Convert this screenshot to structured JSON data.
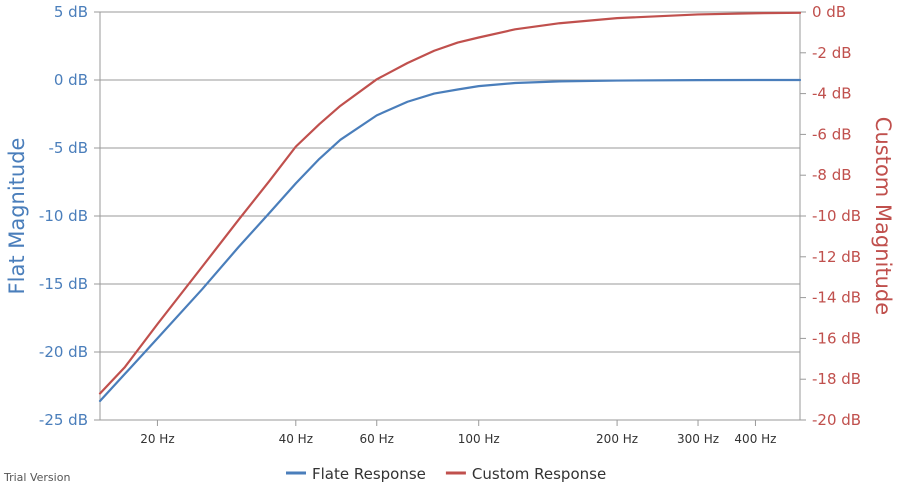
{
  "watermark": "Trial Version",
  "chart_data": {
    "type": "line",
    "x_scale": "log",
    "x_ticks": [
      {
        "value": 20,
        "label": "20 Hz"
      },
      {
        "value": 40,
        "label": "40 Hz"
      },
      {
        "value": 60,
        "label": "60 Hz"
      },
      {
        "value": 100,
        "label": "100 Hz"
      },
      {
        "value": 200,
        "label": "200 Hz"
      },
      {
        "value": 300,
        "label": "300 Hz"
      },
      {
        "value": 400,
        "label": "400 Hz"
      }
    ],
    "xlim": [
      15,
      500
    ],
    "left_axis": {
      "title": "Flat Magnitude",
      "ylim": [
        -25,
        5
      ],
      "ticks": [
        {
          "value": 5,
          "label": "5 dB"
        },
        {
          "value": 0,
          "label": "0 dB"
        },
        {
          "value": -5,
          "label": "-5 dB"
        },
        {
          "value": -10,
          "label": "-10 dB"
        },
        {
          "value": -15,
          "label": "-15 dB"
        },
        {
          "value": -20,
          "label": "-20 dB"
        },
        {
          "value": -25,
          "label": "-25 dB"
        }
      ],
      "color": "#4a7ebb"
    },
    "right_axis": {
      "title": "Custom Magnitude",
      "ylim": [
        -20,
        0
      ],
      "ticks": [
        {
          "value": 0,
          "label": "0 dB"
        },
        {
          "value": -2,
          "label": "-2 dB"
        },
        {
          "value": -4,
          "label": "-4 dB"
        },
        {
          "value": -6,
          "label": "-6 dB"
        },
        {
          "value": -8,
          "label": "-8 dB"
        },
        {
          "value": -10,
          "label": "-10 dB"
        },
        {
          "value": -12,
          "label": "-12 dB"
        },
        {
          "value": -14,
          "label": "-14 dB"
        },
        {
          "value": -16,
          "label": "-16 dB"
        },
        {
          "value": -18,
          "label": "-18 dB"
        },
        {
          "value": -20,
          "label": "-20 dB"
        }
      ],
      "color": "#c0504d"
    },
    "grid": "horizontal",
    "legend_position": "bottom",
    "series": [
      {
        "name": "Flate Response",
        "axis": "left",
        "color": "#4a7ebb",
        "x": [
          15,
          17,
          20,
          25,
          30,
          35,
          40,
          45,
          50,
          60,
          70,
          80,
          90,
          100,
          120,
          150,
          200,
          300,
          400,
          500
        ],
        "y": [
          -23.6,
          -21.6,
          -19.0,
          -15.4,
          -12.3,
          -9.8,
          -7.6,
          -5.8,
          -4.4,
          -2.6,
          -1.6,
          -1.0,
          -0.7,
          -0.45,
          -0.22,
          -0.1,
          -0.04,
          -0.01,
          0.0,
          0.0
        ]
      },
      {
        "name": "Custom Response",
        "axis": "right",
        "color": "#c0504d",
        "x": [
          15,
          17,
          20,
          25,
          30,
          35,
          40,
          45,
          50,
          60,
          70,
          80,
          90,
          100,
          120,
          150,
          200,
          300,
          400,
          500
        ],
        "y": [
          -18.7,
          -17.4,
          -15.3,
          -12.5,
          -10.2,
          -8.3,
          -6.6,
          -5.5,
          -4.6,
          -3.3,
          -2.5,
          -1.9,
          -1.5,
          -1.25,
          -0.85,
          -0.55,
          -0.3,
          -0.12,
          -0.06,
          -0.04
        ]
      }
    ]
  }
}
